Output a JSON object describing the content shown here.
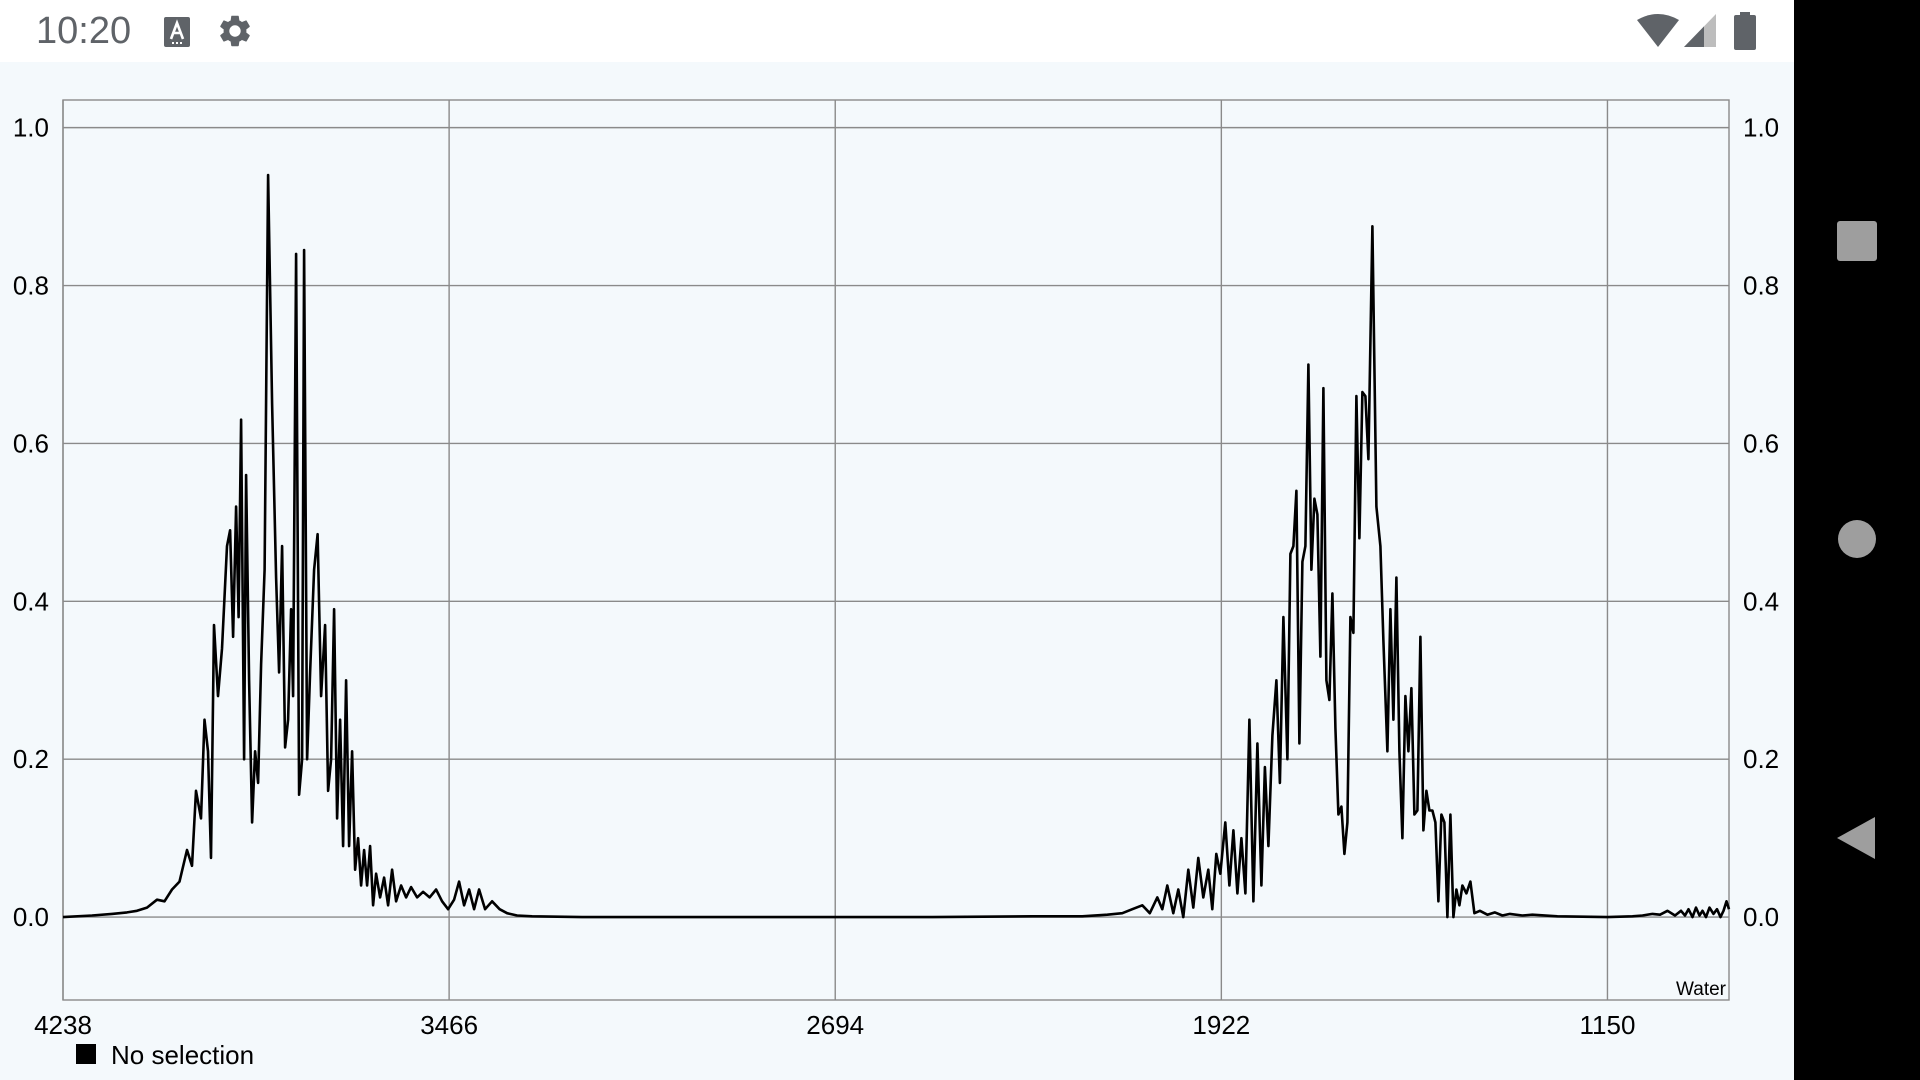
{
  "status_bar": {
    "time": "10:20",
    "icons": [
      "ime-icon",
      "settings-icon",
      "wifi-icon",
      "signal-icon",
      "battery-icon"
    ]
  },
  "nav_bar": {
    "buttons": [
      "recents-button",
      "home-button",
      "back-button"
    ]
  },
  "colors": {
    "plot_background": "#f4f9fc",
    "grid": "#8a8a8a",
    "series": "#000000",
    "nav_button": "#9e9e9e"
  },
  "chart_data": {
    "type": "line",
    "x_reversed": true,
    "xlim": [
      4238,
      907
    ],
    "ylim": [
      -0.105,
      1.035
    ],
    "x_ticks": [
      4238,
      3466,
      2694,
      1922,
      1150
    ],
    "x_tick_labels": [
      "4238",
      "3466",
      "2694",
      "1922",
      "1150"
    ],
    "y_ticks": [
      0.0,
      0.2,
      0.4,
      0.6,
      0.8,
      1.0
    ],
    "y_tick_labels": [
      "0.0",
      "0.2",
      "0.4",
      "0.6",
      "0.8",
      "1.0"
    ],
    "grid": true,
    "corner_label": "Water",
    "legend": {
      "placement": "bottom-left",
      "entries": [
        "No selection"
      ]
    },
    "series": [
      {
        "points": [
          [
            4238,
            0.0
          ],
          [
            4180,
            0.002
          ],
          [
            4140,
            0.004
          ],
          [
            4110,
            0.006
          ],
          [
            4090,
            0.008
          ],
          [
            4070,
            0.012
          ],
          [
            4050,
            0.022
          ],
          [
            4035,
            0.02
          ],
          [
            4020,
            0.035
          ],
          [
            4005,
            0.045
          ],
          [
            3990,
            0.085
          ],
          [
            3980,
            0.065
          ],
          [
            3972,
            0.16
          ],
          [
            3962,
            0.125
          ],
          [
            3955,
            0.25
          ],
          [
            3948,
            0.21
          ],
          [
            3942,
            0.075
          ],
          [
            3936,
            0.37
          ],
          [
            3928,
            0.28
          ],
          [
            3920,
            0.34
          ],
          [
            3910,
            0.47
          ],
          [
            3904,
            0.49
          ],
          [
            3898,
            0.355
          ],
          [
            3892,
            0.52
          ],
          [
            3887,
            0.38
          ],
          [
            3882,
            0.63
          ],
          [
            3876,
            0.2
          ],
          [
            3872,
            0.56
          ],
          [
            3866,
            0.3
          ],
          [
            3860,
            0.12
          ],
          [
            3854,
            0.21
          ],
          [
            3848,
            0.17
          ],
          [
            3842,
            0.32
          ],
          [
            3835,
            0.44
          ],
          [
            3828,
            0.94
          ],
          [
            3820,
            0.65
          ],
          [
            3812,
            0.43
          ],
          [
            3806,
            0.31
          ],
          [
            3800,
            0.47
          ],
          [
            3794,
            0.215
          ],
          [
            3788,
            0.25
          ],
          [
            3782,
            0.39
          ],
          [
            3778,
            0.28
          ],
          [
            3772,
            0.84
          ],
          [
            3766,
            0.155
          ],
          [
            3760,
            0.2
          ],
          [
            3756,
            0.845
          ],
          [
            3750,
            0.2
          ],
          [
            3744,
            0.31
          ],
          [
            3736,
            0.44
          ],
          [
            3729,
            0.485
          ],
          [
            3722,
            0.28
          ],
          [
            3714,
            0.37
          ],
          [
            3708,
            0.16
          ],
          [
            3702,
            0.2
          ],
          [
            3696,
            0.39
          ],
          [
            3690,
            0.125
          ],
          [
            3684,
            0.25
          ],
          [
            3678,
            0.09
          ],
          [
            3672,
            0.3
          ],
          [
            3666,
            0.09
          ],
          [
            3660,
            0.21
          ],
          [
            3654,
            0.06
          ],
          [
            3648,
            0.1
          ],
          [
            3642,
            0.04
          ],
          [
            3636,
            0.085
          ],
          [
            3630,
            0.04
          ],
          [
            3624,
            0.09
          ],
          [
            3618,
            0.015
          ],
          [
            3612,
            0.055
          ],
          [
            3604,
            0.025
          ],
          [
            3596,
            0.05
          ],
          [
            3588,
            0.015
          ],
          [
            3580,
            0.06
          ],
          [
            3572,
            0.02
          ],
          [
            3562,
            0.04
          ],
          [
            3552,
            0.025
          ],
          [
            3542,
            0.038
          ],
          [
            3530,
            0.025
          ],
          [
            3518,
            0.032
          ],
          [
            3505,
            0.025
          ],
          [
            3492,
            0.035
          ],
          [
            3480,
            0.02
          ],
          [
            3468,
            0.01
          ],
          [
            3456,
            0.022
          ],
          [
            3446,
            0.045
          ],
          [
            3436,
            0.015
          ],
          [
            3426,
            0.035
          ],
          [
            3416,
            0.01
          ],
          [
            3406,
            0.035
          ],
          [
            3394,
            0.01
          ],
          [
            3380,
            0.02
          ],
          [
            3365,
            0.01
          ],
          [
            3350,
            0.005
          ],
          [
            3330,
            0.002
          ],
          [
            3300,
            0.001
          ],
          [
            3200,
            0.0
          ],
          [
            3000,
            0.0
          ],
          [
            2800,
            0.0
          ],
          [
            2694,
            0.0
          ],
          [
            2500,
            0.0
          ],
          [
            2300,
            0.001
          ],
          [
            2200,
            0.001
          ],
          [
            2150,
            0.003
          ],
          [
            2120,
            0.005
          ],
          [
            2100,
            0.01
          ],
          [
            2080,
            0.015
          ],
          [
            2065,
            0.005
          ],
          [
            2050,
            0.025
          ],
          [
            2040,
            0.01
          ],
          [
            2030,
            0.04
          ],
          [
            2018,
            0.005
          ],
          [
            2008,
            0.035
          ],
          [
            1998,
            0.0
          ],
          [
            1988,
            0.06
          ],
          [
            1978,
            0.012
          ],
          [
            1968,
            0.075
          ],
          [
            1958,
            0.025
          ],
          [
            1948,
            0.06
          ],
          [
            1940,
            0.01
          ],
          [
            1932,
            0.08
          ],
          [
            1924,
            0.055
          ],
          [
            1914,
            0.12
          ],
          [
            1906,
            0.04
          ],
          [
            1898,
            0.11
          ],
          [
            1890,
            0.03
          ],
          [
            1882,
            0.1
          ],
          [
            1874,
            0.03
          ],
          [
            1866,
            0.25
          ],
          [
            1858,
            0.02
          ],
          [
            1850,
            0.22
          ],
          [
            1842,
            0.04
          ],
          [
            1835,
            0.19
          ],
          [
            1828,
            0.09
          ],
          [
            1820,
            0.23
          ],
          [
            1812,
            0.3
          ],
          [
            1805,
            0.17
          ],
          [
            1798,
            0.38
          ],
          [
            1790,
            0.2
          ],
          [
            1784,
            0.46
          ],
          [
            1778,
            0.47
          ],
          [
            1772,
            0.54
          ],
          [
            1766,
            0.22
          ],
          [
            1760,
            0.45
          ],
          [
            1754,
            0.47
          ],
          [
            1748,
            0.7
          ],
          [
            1742,
            0.44
          ],
          [
            1736,
            0.53
          ],
          [
            1730,
            0.51
          ],
          [
            1724,
            0.33
          ],
          [
            1718,
            0.67
          ],
          [
            1712,
            0.3
          ],
          [
            1706,
            0.275
          ],
          [
            1700,
            0.41
          ],
          [
            1694,
            0.24
          ],
          [
            1688,
            0.13
          ],
          [
            1682,
            0.14
          ],
          [
            1676,
            0.08
          ],
          [
            1670,
            0.12
          ],
          [
            1664,
            0.38
          ],
          [
            1658,
            0.36
          ],
          [
            1652,
            0.66
          ],
          [
            1646,
            0.48
          ],
          [
            1640,
            0.665
          ],
          [
            1634,
            0.66
          ],
          [
            1628,
            0.58
          ],
          [
            1620,
            0.875
          ],
          [
            1612,
            0.52
          ],
          [
            1604,
            0.47
          ],
          [
            1598,
            0.35
          ],
          [
            1590,
            0.21
          ],
          [
            1584,
            0.39
          ],
          [
            1578,
            0.25
          ],
          [
            1572,
            0.43
          ],
          [
            1566,
            0.21
          ],
          [
            1560,
            0.1
          ],
          [
            1554,
            0.28
          ],
          [
            1548,
            0.21
          ],
          [
            1542,
            0.29
          ],
          [
            1536,
            0.13
          ],
          [
            1530,
            0.135
          ],
          [
            1524,
            0.355
          ],
          [
            1518,
            0.11
          ],
          [
            1512,
            0.16
          ],
          [
            1506,
            0.135
          ],
          [
            1500,
            0.135
          ],
          [
            1494,
            0.12
          ],
          [
            1488,
            0.02
          ],
          [
            1482,
            0.13
          ],
          [
            1476,
            0.12
          ],
          [
            1470,
            0.0
          ],
          [
            1464,
            0.13
          ],
          [
            1458,
            0.0
          ],
          [
            1452,
            0.035
          ],
          [
            1446,
            0.015
          ],
          [
            1440,
            0.04
          ],
          [
            1432,
            0.03
          ],
          [
            1424,
            0.045
          ],
          [
            1416,
            0.005
          ],
          [
            1405,
            0.008
          ],
          [
            1390,
            0.003
          ],
          [
            1375,
            0.006
          ],
          [
            1360,
            0.002
          ],
          [
            1345,
            0.004
          ],
          [
            1320,
            0.002
          ],
          [
            1300,
            0.003
          ],
          [
            1250,
            0.001
          ],
          [
            1150,
            0.0
          ],
          [
            1100,
            0.001
          ],
          [
            1080,
            0.002
          ],
          [
            1060,
            0.004
          ],
          [
            1045,
            0.003
          ],
          [
            1030,
            0.008
          ],
          [
            1015,
            0.002
          ],
          [
            1003,
            0.008
          ],
          [
            995,
            0.002
          ],
          [
            988,
            0.01
          ],
          [
            980,
            0.0
          ],
          [
            973,
            0.012
          ],
          [
            966,
            0.002
          ],
          [
            960,
            0.008
          ],
          [
            953,
            0.0
          ],
          [
            946,
            0.012
          ],
          [
            938,
            0.004
          ],
          [
            931,
            0.01
          ],
          [
            924,
            0.0
          ],
          [
            918,
            0.008
          ],
          [
            912,
            0.02
          ],
          [
            907,
            0.01
          ]
        ]
      }
    ]
  }
}
